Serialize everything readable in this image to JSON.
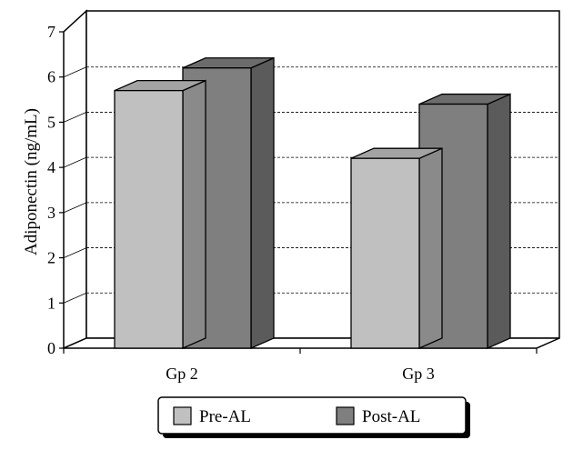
{
  "chart_data": {
    "type": "bar",
    "style": "3d-clustered-column",
    "categories": [
      "Gp 2",
      "Gp 3"
    ],
    "series": [
      {
        "name": "Pre-AL",
        "values": [
          5.7,
          4.2
        ],
        "color": "#c0c0c0"
      },
      {
        "name": "Post-AL",
        "values": [
          6.2,
          5.4
        ],
        "color": "#7f7f7f"
      }
    ],
    "ylabel": "Adiponectin (ng/mL)",
    "xlabel": "",
    "ylim": [
      0,
      7
    ],
    "yticks": [
      "0",
      "1",
      "2",
      "3",
      "4",
      "5",
      "6",
      "7"
    ],
    "grid": true,
    "legend": "bottom-center"
  }
}
